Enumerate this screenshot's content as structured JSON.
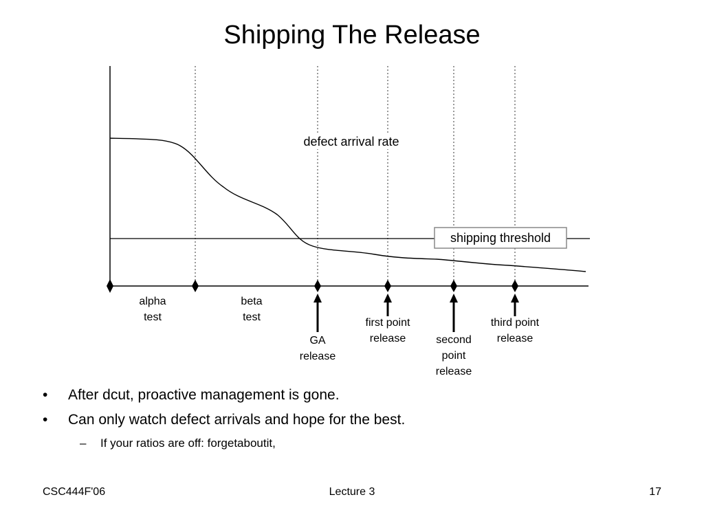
{
  "title": "Shipping The Release",
  "diagram": {
    "curve_label": "defect arrival rate",
    "threshold_label": "shipping threshold",
    "phases": [
      {
        "line1": "alpha",
        "line2": "test"
      },
      {
        "line1": "beta",
        "line2": "test"
      }
    ],
    "releases": [
      {
        "lines": [
          "GA",
          "release"
        ]
      },
      {
        "lines": [
          "first point",
          "release"
        ]
      },
      {
        "lines": [
          "second",
          "point",
          "release"
        ]
      },
      {
        "lines": [
          "third point",
          "release"
        ]
      }
    ]
  },
  "bullets": [
    "After dcut, proactive management is gone.",
    "Can only watch defect arrivals and hope for the best."
  ],
  "subbullets": [
    "If your ratios are off: forgetaboutit,"
  ],
  "footer": {
    "left": "CSC444F'06",
    "center": "Lecture 3",
    "right": "17"
  }
}
